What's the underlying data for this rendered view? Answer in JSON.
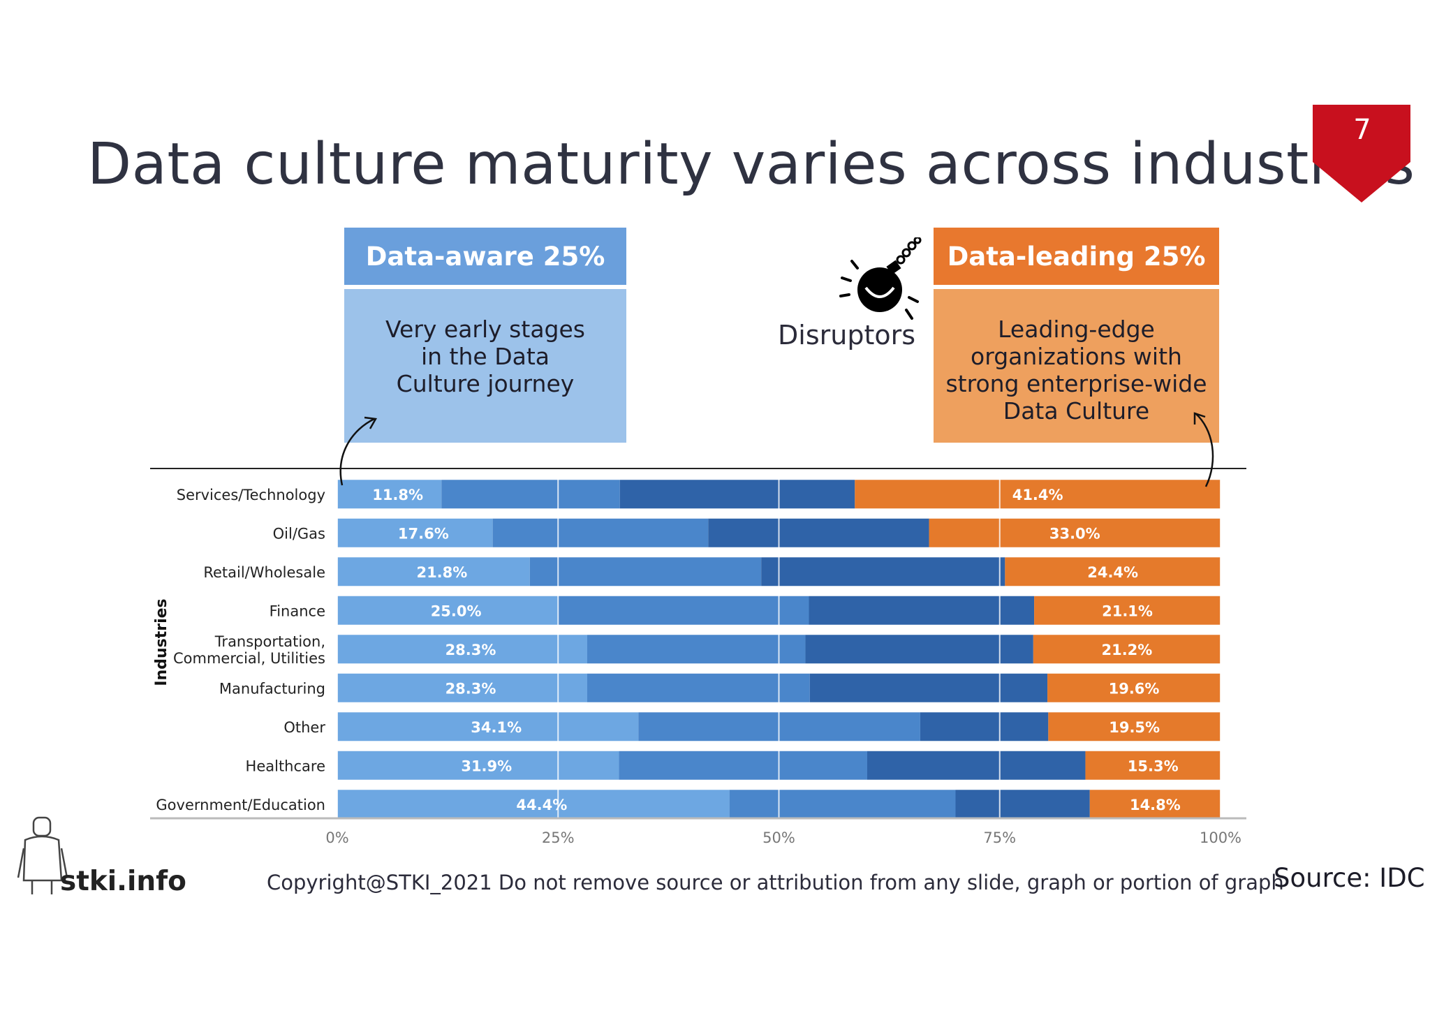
{
  "slide": {
    "title": "Data culture maturity varies across industries",
    "page_number": "7",
    "badge_color": "#c8101e"
  },
  "callouts": {
    "left": {
      "heading": "Data-aware 25%",
      "lines": [
        "Very early stages",
        "in the Data",
        "Culture journey"
      ],
      "head_color": "#6a9fdc",
      "body_color": "#9cc2ea"
    },
    "right": {
      "heading": "Data-leading 25%",
      "lines": [
        "Leading-edge",
        "organizations with",
        "strong enterprise-wide",
        "Data Culture"
      ],
      "head_color": "#e8782e",
      "body_color": "#eea05e"
    },
    "disruptors_label": "Disruptors",
    "disruptors_icon": "bomb-icon"
  },
  "chart_data": {
    "type": "bar",
    "orientation": "horizontal",
    "stacked": true,
    "ylabel": "Industries",
    "xlim": [
      0,
      100
    ],
    "x_ticks": [
      "0%",
      "25%",
      "50%",
      "75%",
      "100%"
    ],
    "categories": [
      "Services/Technology",
      "Oil/Gas",
      "Retail/Wholesale",
      "Finance",
      "Transportation, Commercial, Utilities",
      "Manufacturing",
      "Other",
      "Healthcare",
      "Government/Education"
    ],
    "series": [
      {
        "color": "#6da7e2",
        "values": [
          11.8,
          17.6,
          21.8,
          25.0,
          28.3,
          28.3,
          34.1,
          31.9,
          44.4
        ]
      },
      {
        "color": "#4a86cb",
        "values": [
          20.2,
          24.4,
          26.2,
          28.4,
          24.7,
          25.2,
          31.9,
          28.1,
          25.6
        ]
      },
      {
        "color": "#2f63a8",
        "values": [
          26.6,
          25.0,
          27.6,
          25.5,
          25.8,
          26.9,
          14.5,
          24.7,
          15.2
        ]
      },
      {
        "color": "#e57a2b",
        "values": [
          41.4,
          33.0,
          24.4,
          21.1,
          21.2,
          19.6,
          19.5,
          15.3,
          14.8
        ]
      }
    ],
    "labels_first": [
      "11.8%",
      "17.6%",
      "21.8%",
      "25.0%",
      "28.3%",
      "28.3%",
      "34.1%",
      "31.9%",
      "44.4%"
    ],
    "labels_last": [
      "41.4%",
      "33.0%",
      "24.4%",
      "21.1%",
      "21.2%",
      "19.6%",
      "19.5%",
      "15.3%",
      "14.8%"
    ],
    "grid": true
  },
  "footer": {
    "logo_text": "stki.info",
    "copyright": "Copyright@STKI_2021 Do not remove source or attribution from any slide, graph or portion of graph",
    "source": "Source: IDC"
  }
}
